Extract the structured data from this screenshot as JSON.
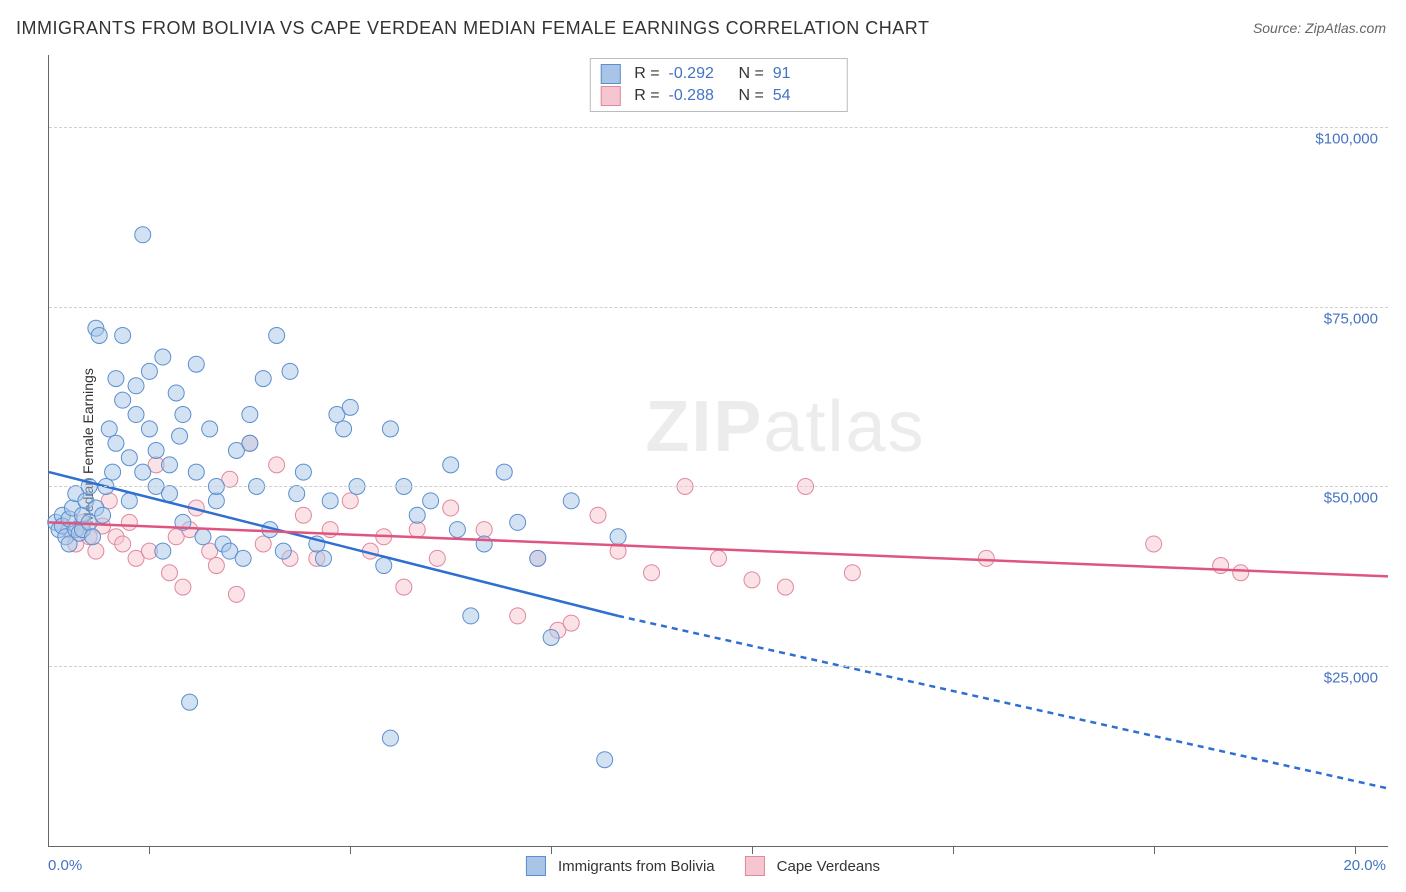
{
  "title": "IMMIGRANTS FROM BOLIVIA VS CAPE VERDEAN MEDIAN FEMALE EARNINGS CORRELATION CHART",
  "source": "Source: ZipAtlas.com",
  "y_axis_label": "Median Female Earnings",
  "watermark": {
    "bold": "ZIP",
    "light": "atlas"
  },
  "chart": {
    "type": "scatter",
    "xlim": [
      0,
      20
    ],
    "ylim": [
      0,
      110000
    ],
    "x_ticks_minor": [
      1.5,
      4.5,
      7.5,
      10.5,
      13.5,
      16.5,
      19.5
    ],
    "x_tick_labels": {
      "left": "0.0%",
      "right": "20.0%"
    },
    "y_gridlines": [
      {
        "value": 25000,
        "label": "$25,000"
      },
      {
        "value": 50000,
        "label": "$50,000"
      },
      {
        "value": 75000,
        "label": "$75,000"
      },
      {
        "value": 100000,
        "label": "$100,000"
      }
    ],
    "background_color": "#ffffff",
    "grid_color": "#d0d0d0",
    "marker_radius": 8,
    "marker_opacity": 0.5
  },
  "series": {
    "bolivia": {
      "label": "Immigrants from Bolivia",
      "color_fill": "#a8c5e8",
      "color_stroke": "#5b8fd0",
      "line_color": "#2e6fd0",
      "R": "-0.292",
      "N": "91",
      "trend_solid": {
        "x1": 0,
        "y1": 52000,
        "x2": 8.5,
        "y2": 32000
      },
      "trend_dashed": {
        "x1": 8.5,
        "y1": 32000,
        "x2": 20,
        "y2": 8000
      },
      "points": [
        [
          0.1,
          45000
        ],
        [
          0.15,
          44000
        ],
        [
          0.2,
          46000
        ],
        [
          0.2,
          44500
        ],
        [
          0.25,
          43000
        ],
        [
          0.3,
          45500
        ],
        [
          0.3,
          42000
        ],
        [
          0.35,
          47000
        ],
        [
          0.4,
          44000
        ],
        [
          0.4,
          49000
        ],
        [
          0.45,
          43500
        ],
        [
          0.5,
          46000
        ],
        [
          0.5,
          44000
        ],
        [
          0.55,
          48000
        ],
        [
          0.6,
          45000
        ],
        [
          0.6,
          50000
        ],
        [
          0.65,
          43000
        ],
        [
          0.7,
          47000
        ],
        [
          0.7,
          72000
        ],
        [
          0.75,
          71000
        ],
        [
          0.8,
          46000
        ],
        [
          0.85,
          50000
        ],
        [
          0.9,
          58000
        ],
        [
          0.95,
          52000
        ],
        [
          1.0,
          65000
        ],
        [
          1.0,
          56000
        ],
        [
          1.1,
          71000
        ],
        [
          1.1,
          62000
        ],
        [
          1.2,
          48000
        ],
        [
          1.2,
          54000
        ],
        [
          1.3,
          60000
        ],
        [
          1.3,
          64000
        ],
        [
          1.4,
          85000
        ],
        [
          1.4,
          52000
        ],
        [
          1.5,
          66000
        ],
        [
          1.5,
          58000
        ],
        [
          1.6,
          50000
        ],
        [
          1.6,
          55000
        ],
        [
          1.7,
          68000
        ],
        [
          1.7,
          41000
        ],
        [
          1.8,
          49000
        ],
        [
          1.8,
          53000
        ],
        [
          1.9,
          63000
        ],
        [
          1.95,
          57000
        ],
        [
          2.0,
          60000
        ],
        [
          2.0,
          45000
        ],
        [
          2.1,
          20000
        ],
        [
          2.2,
          52000
        ],
        [
          2.2,
          67000
        ],
        [
          2.3,
          43000
        ],
        [
          2.4,
          58000
        ],
        [
          2.5,
          48000
        ],
        [
          2.5,
          50000
        ],
        [
          2.6,
          42000
        ],
        [
          2.7,
          41000
        ],
        [
          2.8,
          55000
        ],
        [
          2.9,
          40000
        ],
        [
          3.0,
          60000
        ],
        [
          3.0,
          56000
        ],
        [
          3.1,
          50000
        ],
        [
          3.2,
          65000
        ],
        [
          3.3,
          44000
        ],
        [
          3.4,
          71000
        ],
        [
          3.5,
          41000
        ],
        [
          3.6,
          66000
        ],
        [
          3.7,
          49000
        ],
        [
          3.8,
          52000
        ],
        [
          4.0,
          42000
        ],
        [
          4.1,
          40000
        ],
        [
          4.2,
          48000
        ],
        [
          4.3,
          60000
        ],
        [
          4.4,
          58000
        ],
        [
          4.5,
          61000
        ],
        [
          4.6,
          50000
        ],
        [
          5.0,
          39000
        ],
        [
          5.1,
          15000
        ],
        [
          5.1,
          58000
        ],
        [
          5.3,
          50000
        ],
        [
          5.5,
          46000
        ],
        [
          5.7,
          48000
        ],
        [
          6.0,
          53000
        ],
        [
          6.1,
          44000
        ],
        [
          6.3,
          32000
        ],
        [
          6.5,
          42000
        ],
        [
          6.8,
          52000
        ],
        [
          7.0,
          45000
        ],
        [
          7.3,
          40000
        ],
        [
          7.5,
          29000
        ],
        [
          7.8,
          48000
        ],
        [
          8.3,
          12000
        ],
        [
          8.5,
          43000
        ]
      ]
    },
    "capeverdean": {
      "label": "Cape Verdeans",
      "color_fill": "#f5c6d0",
      "color_stroke": "#e088a0",
      "line_color": "#e05580",
      "R": "-0.288",
      "N": "54",
      "trend_solid": {
        "x1": 0,
        "y1": 45000,
        "x2": 20,
        "y2": 37500
      },
      "points": [
        [
          0.3,
          44000
        ],
        [
          0.4,
          42000
        ],
        [
          0.5,
          45000
        ],
        [
          0.6,
          43000
        ],
        [
          0.7,
          41000
        ],
        [
          0.8,
          44500
        ],
        [
          0.9,
          48000
        ],
        [
          1.0,
          43000
        ],
        [
          1.1,
          42000
        ],
        [
          1.2,
          45000
        ],
        [
          1.3,
          40000
        ],
        [
          1.5,
          41000
        ],
        [
          1.6,
          53000
        ],
        [
          1.8,
          38000
        ],
        [
          1.9,
          43000
        ],
        [
          2.0,
          36000
        ],
        [
          2.1,
          44000
        ],
        [
          2.2,
          47000
        ],
        [
          2.4,
          41000
        ],
        [
          2.5,
          39000
        ],
        [
          2.7,
          51000
        ],
        [
          2.8,
          35000
        ],
        [
          3.0,
          56000
        ],
        [
          3.2,
          42000
        ],
        [
          3.4,
          53000
        ],
        [
          3.6,
          40000
        ],
        [
          3.8,
          46000
        ],
        [
          4.0,
          40000
        ],
        [
          4.2,
          44000
        ],
        [
          4.5,
          48000
        ],
        [
          4.8,
          41000
        ],
        [
          5.0,
          43000
        ],
        [
          5.3,
          36000
        ],
        [
          5.5,
          44000
        ],
        [
          5.8,
          40000
        ],
        [
          6.0,
          47000
        ],
        [
          6.5,
          44000
        ],
        [
          7.0,
          32000
        ],
        [
          7.3,
          40000
        ],
        [
          7.6,
          30000
        ],
        [
          7.8,
          31000
        ],
        [
          8.2,
          46000
        ],
        [
          8.5,
          41000
        ],
        [
          9.0,
          38000
        ],
        [
          9.5,
          50000
        ],
        [
          10.0,
          40000
        ],
        [
          10.5,
          37000
        ],
        [
          11.0,
          36000
        ],
        [
          11.3,
          50000
        ],
        [
          12.0,
          38000
        ],
        [
          14.0,
          40000
        ],
        [
          16.5,
          42000
        ],
        [
          17.5,
          39000
        ],
        [
          17.8,
          38000
        ]
      ]
    }
  },
  "bottom_legend": [
    {
      "key": "bolivia"
    },
    {
      "key": "capeverdean"
    }
  ]
}
